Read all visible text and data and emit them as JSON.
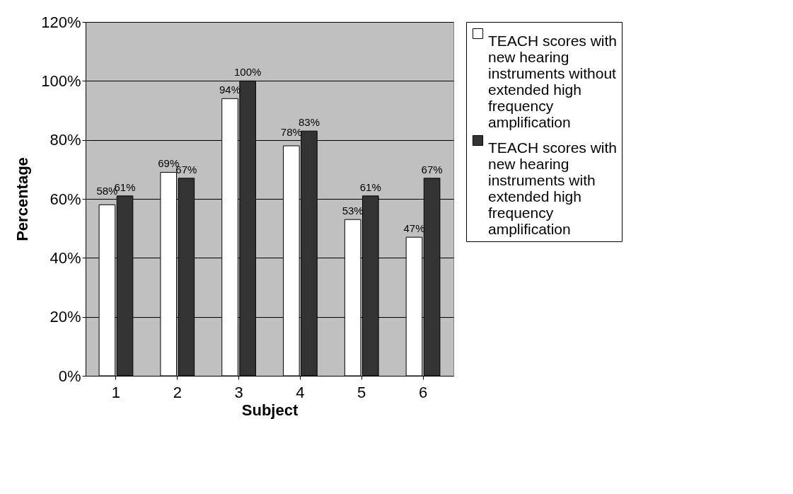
{
  "chart_data": {
    "type": "bar",
    "xlabel": "Subject",
    "ylabel": "Percentage",
    "categories": [
      "1",
      "2",
      "3",
      "4",
      "5",
      "6"
    ],
    "series": [
      {
        "name": "TEACH scores with new hearing instruments without extended high frequency amplification",
        "color": "#ffffff",
        "values": [
          58,
          69,
          94,
          78,
          53,
          47
        ],
        "value_labels": [
          "58%",
          "69%",
          "94%",
          "78%",
          "53%",
          "47%"
        ]
      },
      {
        "name": "TEACH scores with new hearing instruments with extended high frequency amplification",
        "color": "#333333",
        "values": [
          61,
          67,
          100,
          83,
          61,
          67
        ],
        "value_labels": [
          "61%",
          "67%",
          "100%",
          "83%",
          "61%",
          "67%"
        ]
      }
    ],
    "ylim": [
      0,
      120
    ],
    "yticks": [
      {
        "value": 0,
        "label": "0%"
      },
      {
        "value": 20,
        "label": "20%"
      },
      {
        "value": 40,
        "label": "40%"
      },
      {
        "value": 60,
        "label": "60%"
      },
      {
        "value": 80,
        "label": "80%"
      },
      {
        "value": 100,
        "label": "100%"
      },
      {
        "value": 120,
        "label": "120%"
      }
    ],
    "grid": "y",
    "legend": "right"
  }
}
